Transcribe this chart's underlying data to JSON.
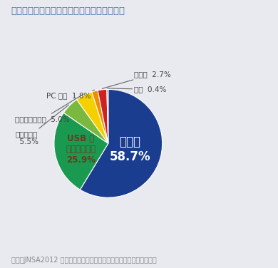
{
  "title": "情報漏えい経路における紙媒体の占める割合",
  "footnote": "参考：JNSA2012 情報セキュリティインシデントに関する調査報告書",
  "slices": [
    {
      "label": "紙媒体",
      "pct": 58.7,
      "color": "#1b3d8f"
    },
    {
      "label": "USB等可搬記録媒体",
      "pct": 25.9,
      "color": "#1a9a50"
    },
    {
      "label": "電子メール",
      "pct": 5.5,
      "color": "#7ab840"
    },
    {
      "label": "インターネット",
      "pct": 5.0,
      "color": "#f5d000"
    },
    {
      "label": "PC本体",
      "pct": 1.8,
      "color": "#f08c00"
    },
    {
      "label": "その他",
      "pct": 2.7,
      "color": "#cc2222"
    },
    {
      "label": "不明",
      "pct": 0.4,
      "color": "#c06060"
    }
  ],
  "bg_color": "#e8eaf0",
  "title_color": "#5577aa",
  "footnote_color": "#888888",
  "annotation_color": "#444444",
  "usb_label_color": "#6b3a1f",
  "kami_label_color": "#ffffff"
}
